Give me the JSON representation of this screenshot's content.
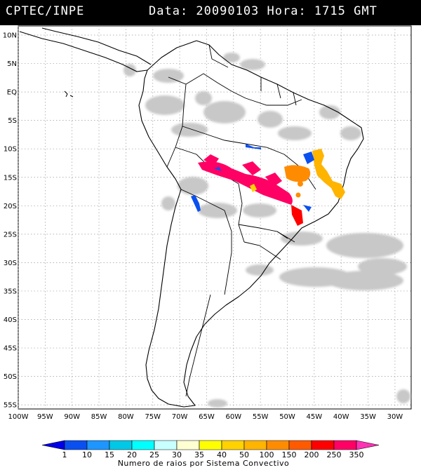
{
  "header": {
    "source": "CPTEC/INPE",
    "datetime": "Data: 20090103 Hora: 1715 GMT",
    "background": "#000000",
    "text_color": "#ffffff"
  },
  "map": {
    "lat_labels": [
      "10N",
      "5N",
      "EQ",
      "5S",
      "10S",
      "15S",
      "20S",
      "25S",
      "30S",
      "35S",
      "40S",
      "45S",
      "50S",
      "55S"
    ],
    "lon_labels": [
      "100W",
      "95W",
      "90W",
      "85W",
      "80W",
      "75W",
      "70W",
      "65W",
      "60W",
      "55W",
      "50W",
      "45W",
      "40W",
      "35W",
      "30W"
    ],
    "lat_range": [
      12.5,
      -56
    ],
    "lon_range": [
      -100,
      -27
    ],
    "grid": "dotted",
    "cloud_color": "#c8c8c8",
    "coast_color": "#000000"
  },
  "colorbar": {
    "tick_labels": [
      "1",
      "10",
      "15",
      "20",
      "25",
      "30",
      "35",
      "40",
      "50",
      "100",
      "150",
      "200",
      "250",
      "350"
    ],
    "colors": [
      "#0000e6",
      "#0a50f0",
      "#1e96ff",
      "#00c8e6",
      "#00ffff",
      "#c8ffff",
      "#ffffd2",
      "#ffff00",
      "#ffd200",
      "#ffb400",
      "#ff8c00",
      "#ff5a00",
      "#ff0000",
      "#ff0064",
      "#ff32b4"
    ],
    "title": "Numero de raios por Sistema Convectivo"
  }
}
